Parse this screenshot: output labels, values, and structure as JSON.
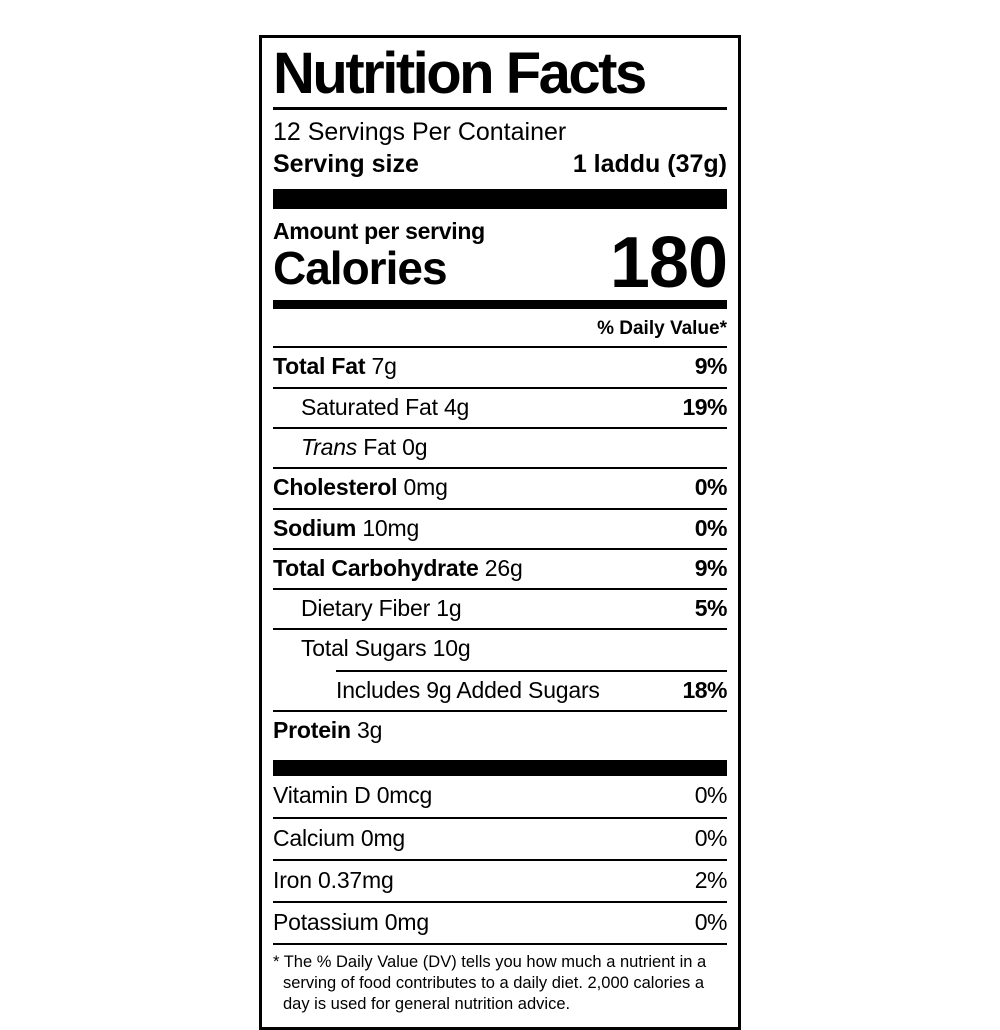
{
  "label": {
    "title": "Nutrition Facts",
    "servings_per_container": "12 Servings Per Container",
    "serving_size": {
      "label": "Serving size",
      "value": "1 laddu (37g)"
    },
    "calories": {
      "heading": "Amount per serving",
      "label": "Calories",
      "value": "180"
    },
    "daily_value_header": "% Daily Value*",
    "nutrients": [
      {
        "name": "Total Fat",
        "amount": "7g",
        "dv": "9%"
      },
      {
        "name": "Saturated Fat",
        "amount": "4g",
        "dv": "19%"
      },
      {
        "name": "Trans",
        "amount": "Fat 0g",
        "dv": ""
      },
      {
        "name": "Cholesterol",
        "amount": "0mg",
        "dv": "0%"
      },
      {
        "name": "Sodium",
        "amount": "10mg",
        "dv": "0%"
      },
      {
        "name": "Total Carbohydrate",
        "amount": "26g",
        "dv": "9%"
      },
      {
        "name": "Dietary Fiber",
        "amount": "1g",
        "dv": "5%"
      },
      {
        "name": "Total Sugars",
        "amount": "10g",
        "dv": ""
      },
      {
        "name": "Includes 9g Added Sugars",
        "amount": "",
        "dv": "18%"
      },
      {
        "name": "Protein",
        "amount": "3g",
        "dv": ""
      }
    ],
    "micronutrients": [
      {
        "name": "Vitamin D",
        "amount": "0mcg",
        "dv": "0%"
      },
      {
        "name": "Calcium",
        "amount": "0mg",
        "dv": "0%"
      },
      {
        "name": "Iron",
        "amount": "0.37mg",
        "dv": "2%"
      },
      {
        "name": "Potassium",
        "amount": "0mg",
        "dv": "0%"
      }
    ],
    "footnote": "* The % Daily Value (DV) tells you how much a nutrient in a serving of food contributes to a daily diet. 2,000 calories a day is used for general nutrition advice.",
    "colors": {
      "ink": "#000000",
      "background": "#ffffff"
    }
  }
}
